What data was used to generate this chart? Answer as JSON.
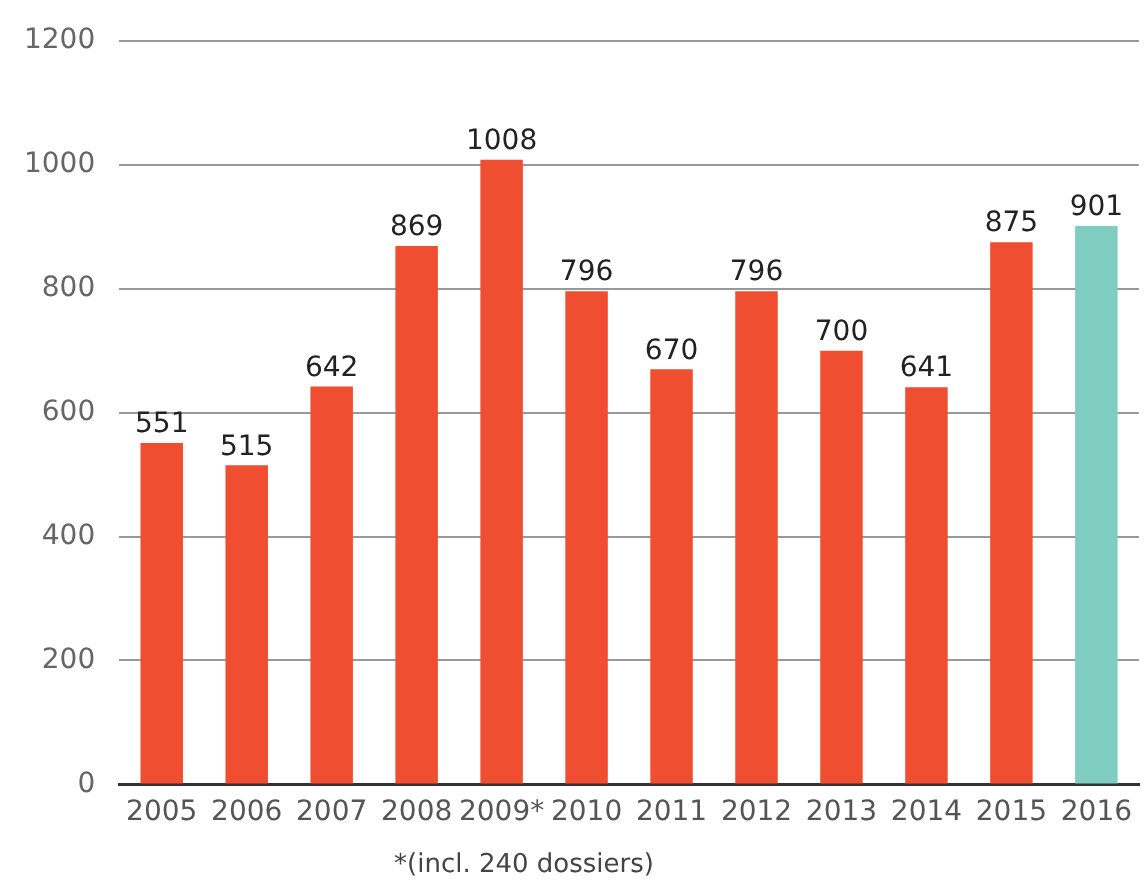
{
  "chart_data": {
    "type": "bar",
    "categories": [
      "2005",
      "2006",
      "2007",
      "2008",
      "2009*",
      "2010",
      "2011",
      "2012",
      "2013",
      "2014",
      "2015",
      "2016"
    ],
    "values": [
      551,
      515,
      642,
      869,
      1008,
      796,
      670,
      796,
      700,
      641,
      875,
      901
    ],
    "colors": [
      "#f04e30",
      "#f04e30",
      "#f04e30",
      "#f04e30",
      "#f04e30",
      "#f04e30",
      "#f04e30",
      "#f04e30",
      "#f04e30",
      "#f04e30",
      "#f04e30",
      "#7ecdc0"
    ],
    "ylim": [
      0,
      1200
    ],
    "yticks": [
      0,
      200,
      400,
      600,
      800,
      1000,
      1200
    ],
    "grid": "y",
    "data_labels": true,
    "annotations": [
      "*(incl. 240 dossiers)"
    ]
  }
}
